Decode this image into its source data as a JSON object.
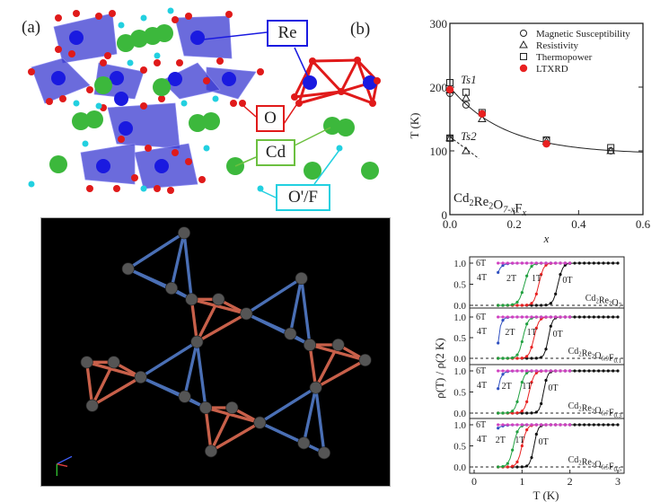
{
  "panel_a": {
    "label": "(a)",
    "label_b": "(b)",
    "atoms": [
      {
        "name": "Re",
        "color": "#1a1ae0"
      },
      {
        "name": "O",
        "color": "#e01a1a"
      },
      {
        "name": "Cd",
        "color": "#3cb83c"
      },
      {
        "name": "O'/F",
        "color": "#22d0e0"
      }
    ]
  },
  "colors": {
    "blue_bond": "#4a6fb5",
    "red_bond": "#c8604a",
    "node": "#555555"
  },
  "chart_data": [
    {
      "type": "scatter",
      "title": "Cd2Re2O7-xFx",
      "annotation": {
        "base": "Cd",
        "parts": [
          [
            "Cd",
            ""
          ],
          [
            "2",
            "sub"
          ],
          [
            "Re",
            ""
          ],
          [
            "2",
            "sub"
          ],
          [
            "O",
            ""
          ],
          [
            "7-x",
            "subi"
          ],
          [
            "F",
            ""
          ],
          [
            "x",
            "subi"
          ]
        ]
      },
      "xlabel": "x",
      "ylabel": "T (K)",
      "xlim": [
        0,
        0.6
      ],
      "ylim": [
        0,
        300
      ],
      "xticks": [
        "0.0",
        "0.2",
        "0.4",
        "0.6"
      ],
      "yticks": [
        "0",
        "100",
        "200",
        "300"
      ],
      "legend_position": "top-right",
      "labels": {
        "ts1": "Ts1",
        "ts2": "Ts2"
      },
      "series": [
        {
          "name": "Magnetic Susceptibility",
          "marker": "circle",
          "points": [
            [
              0,
              190
            ],
            [
              0,
              120
            ],
            [
              0.05,
              172
            ],
            [
              0.1,
              158
            ],
            [
              0.3,
              117
            ],
            [
              0.5,
              100
            ]
          ]
        },
        {
          "name": "Resistivity",
          "marker": "triangle",
          "points": [
            [
              0,
              195
            ],
            [
              0,
              120
            ],
            [
              0.05,
              183
            ],
            [
              0.05,
              100
            ],
            [
              0.1,
              150
            ],
            [
              0.3,
              115
            ],
            [
              0.5,
              100
            ]
          ]
        },
        {
          "name": "Thermopower",
          "marker": "square",
          "points": [
            [
              0,
              207
            ],
            [
              0,
              120
            ],
            [
              0.05,
              192
            ],
            [
              0.1,
              160
            ],
            [
              0.3,
              117
            ],
            [
              0.5,
              105
            ]
          ]
        },
        {
          "name": "LTXRD",
          "marker": "filled-circle",
          "color": "#e82020",
          "points": [
            [
              0,
              196
            ],
            [
              0.1,
              158
            ],
            [
              0.3,
              111
            ]
          ]
        }
      ],
      "fit_curve": {
        "form": "a + b*exp(-x/c)",
        "a": 95,
        "b": 105,
        "c": 0.17
      },
      "ts2_line": [
        [
          0,
          122
        ],
        [
          0.09,
          88
        ]
      ]
    },
    {
      "type": "line",
      "xlabel": "T (K)",
      "ylabel": "ρ(T) / ρ(2 K)",
      "xlim": [
        0,
        3
      ],
      "ylim": [
        0,
        1.1
      ],
      "xticks": [
        "0",
        "1",
        "2",
        "3"
      ],
      "yticks": [
        "0.0",
        "0.5",
        "1.0"
      ],
      "field_colors": {
        "0T": "#111111",
        "1T": "#e82020",
        "2T": "#20a040",
        "4T": "#3050c0",
        "6T": "#d040c0"
      },
      "panels": [
        {
          "compound": [
            [
              "Cd",
              ""
            ],
            [
              "2",
              "sub"
            ],
            [
              "Re",
              ""
            ],
            [
              "2",
              "sub"
            ],
            [
              "O",
              ""
            ],
            [
              "7",
              "sub"
            ]
          ],
          "curves": [
            {
              "field": "0T",
              "midpoint_K": 1.75,
              "width_K": 0.05
            },
            {
              "field": "1T",
              "midpoint_K": 1.35,
              "width_K": 0.05
            },
            {
              "field": "2T",
              "midpoint_K": 1.05,
              "width_K": 0.06
            },
            {
              "field": "4T",
              "start_value": 0.78,
              "midpoint_K": 0.4,
              "width_K": 0.06
            },
            {
              "field": "6T",
              "midpoint_K": 0,
              "width_K": 0.05
            }
          ]
        },
        {
          "compound": [
            [
              "Cd",
              ""
            ],
            [
              "2",
              "sub"
            ],
            [
              "Re",
              ""
            ],
            [
              "2",
              "sub"
            ],
            [
              "O",
              ""
            ],
            [
              "6.9",
              "sub"
            ],
            [
              "F",
              ""
            ],
            [
              "0.1",
              "sub"
            ]
          ],
          "curves": [
            {
              "field": "0T",
              "midpoint_K": 1.55,
              "width_K": 0.04
            },
            {
              "field": "1T",
              "midpoint_K": 1.25,
              "width_K": 0.05
            },
            {
              "field": "2T",
              "midpoint_K": 1.02,
              "width_K": 0.05
            },
            {
              "field": "4T",
              "start_value": 0.37,
              "midpoint_K": 0.52,
              "width_K": 0.04
            },
            {
              "field": "6T",
              "midpoint_K": 0,
              "width_K": 0.05
            }
          ]
        },
        {
          "compound": [
            [
              "Cd",
              ""
            ],
            [
              "2",
              "sub"
            ],
            [
              "Re",
              ""
            ],
            [
              "2",
              "sub"
            ],
            [
              "O",
              ""
            ],
            [
              "6.7",
              "sub"
            ],
            [
              "F",
              ""
            ],
            [
              "0.3",
              "sub"
            ]
          ],
          "curves": [
            {
              "field": "0T",
              "midpoint_K": 1.45,
              "width_K": 0.04
            },
            {
              "field": "1T",
              "midpoint_K": 1.15,
              "width_K": 0.05
            },
            {
              "field": "2T",
              "midpoint_K": 0.95,
              "width_K": 0.05
            },
            {
              "field": "4T",
              "start_value": 0.58,
              "midpoint_K": 0.49,
              "width_K": 0.05
            },
            {
              "field": "6T",
              "midpoint_K": 0,
              "width_K": 0.05
            }
          ]
        },
        {
          "compound": [
            [
              "Cd",
              ""
            ],
            [
              "2",
              "sub"
            ],
            [
              "Re",
              ""
            ],
            [
              "2",
              "sub"
            ],
            [
              "O",
              ""
            ],
            [
              "6.5",
              "sub"
            ],
            [
              "F",
              ""
            ],
            [
              "0.5",
              "sub"
            ]
          ],
          "curves": [
            {
              "field": "0T",
              "midpoint_K": 1.25,
              "width_K": 0.04
            },
            {
              "field": "1T",
              "midpoint_K": 1.0,
              "width_K": 0.05
            },
            {
              "field": "2T",
              "midpoint_K": 0.82,
              "width_K": 0.05
            },
            {
              "field": "4T",
              "start_value": 0.92,
              "midpoint_K": 0.3,
              "width_K": 0.08
            },
            {
              "field": "6T",
              "midpoint_K": 0,
              "width_K": 0.05
            }
          ]
        }
      ]
    }
  ]
}
